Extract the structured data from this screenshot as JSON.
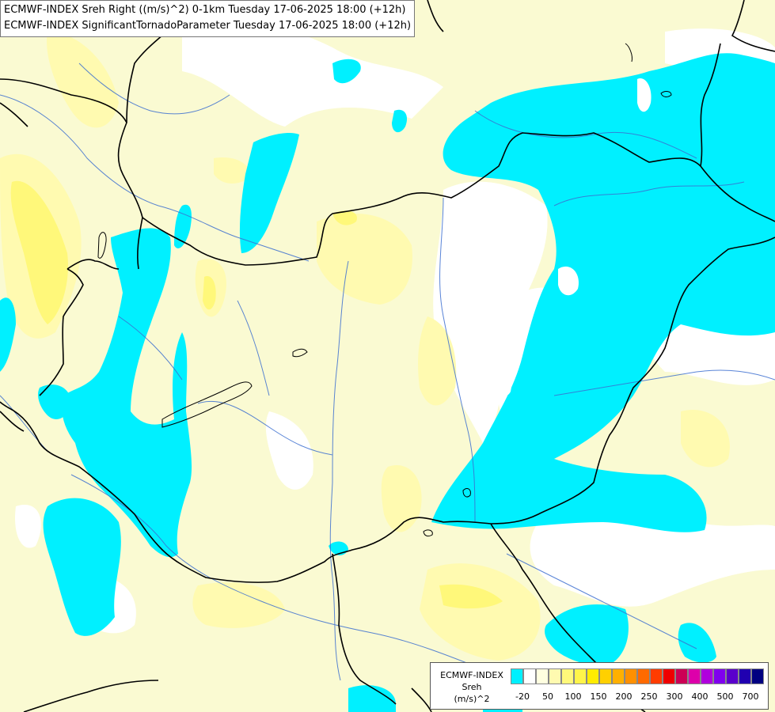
{
  "header": {
    "line1": "ECMWF-INDEX Sreh Right ((m/s)^2) 0-1km Tuesday 17-06-2025 18:00 (+12h)",
    "line2": "ECMWF-INDEX SignificantTornadoParameter Tuesday 17-06-2025 18:00 (+12h)"
  },
  "legend": {
    "title_1": "ECMWF-INDEX",
    "title_2": "Sreh",
    "title_3": "(m/s)^2",
    "colors": [
      "#00f0ff",
      "#ffffff",
      "#ffffe0",
      "#fffab0",
      "#fff87a",
      "#fff44a",
      "#ffec00",
      "#ffd000",
      "#ffb000",
      "#ff9000",
      "#ff6a00",
      "#ff3c00",
      "#ee0000",
      "#cc0055",
      "#dd00aa",
      "#b000dd",
      "#8000ee",
      "#5a00cc",
      "#2000b0",
      "#000080"
    ],
    "ticks": [
      "-20",
      "50",
      "100",
      "150",
      "200",
      "250",
      "300",
      "400",
      "500",
      "700"
    ]
  },
  "map_colors": {
    "cyan": "#00f0ff",
    "pale_yellow": "#fafad2",
    "light_yellow": "#fffab0",
    "yellow": "#fff87a",
    "white": "#ffffff",
    "border": "#000000",
    "river": "#3c6fd0"
  }
}
